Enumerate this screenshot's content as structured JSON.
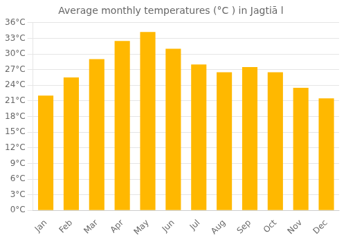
{
  "chart_data": {
    "type": "bar",
    "title": "Average monthly temperatures (°C ) in Jagtiā l",
    "categories": [
      "Jan",
      "Feb",
      "Mar",
      "Apr",
      "May",
      "Jun",
      "Jul",
      "Aug",
      "Sep",
      "Oct",
      "Nov",
      "Dec"
    ],
    "values": [
      22.0,
      25.5,
      29.0,
      32.5,
      34.2,
      31.0,
      28.0,
      26.5,
      27.5,
      26.5,
      23.5,
      21.5
    ],
    "color": "#FFB800",
    "ylim": [
      0,
      36
    ],
    "yticks": [
      {
        "value": 0,
        "label": "0°C"
      },
      {
        "value": 3,
        "label": "3°C"
      },
      {
        "value": 6,
        "label": "6°C"
      },
      {
        "value": 9,
        "label": "9°C"
      },
      {
        "value": 12,
        "label": "12°C"
      },
      {
        "value": 15,
        "label": "15°C"
      },
      {
        "value": 18,
        "label": "18°C"
      },
      {
        "value": 21,
        "label": "21°C"
      },
      {
        "value": 24,
        "label": "24°C"
      },
      {
        "value": 27,
        "label": "27°C"
      },
      {
        "value": 30,
        "label": "30°C"
      },
      {
        "value": 33,
        "label": "33°C"
      },
      {
        "value": 36,
        "label": "36°C"
      }
    ],
    "grid": true
  }
}
